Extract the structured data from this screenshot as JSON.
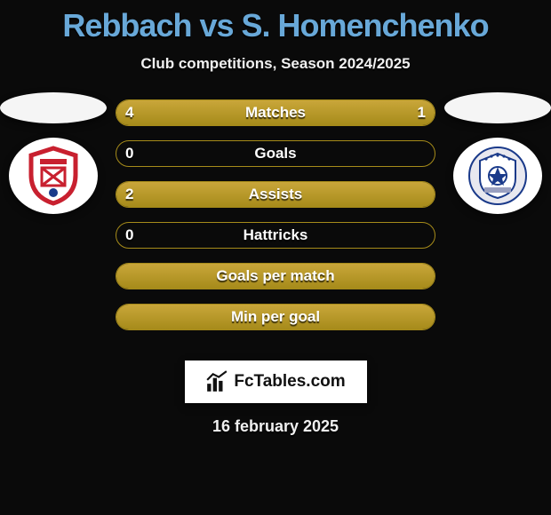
{
  "title": "Rebbach vs S. Homenchenko",
  "subtitle": "Club competitions, Season 2024/2025",
  "date": "16 february 2025",
  "branding": "FcTables.com",
  "colors": {
    "background": "#0a0a0a",
    "title": "#68a8d8",
    "text": "#f0f0f0",
    "bar_fill_top": "#c9a63a",
    "bar_fill_bottom": "#a68b1a",
    "bar_border": "#a68b1a",
    "banner_bg": "#ffffff"
  },
  "stats": [
    {
      "label": "Matches",
      "left_value": "4",
      "right_value": "1",
      "left_pct": 80,
      "right_pct": 20
    },
    {
      "label": "Goals",
      "left_value": "0",
      "right_value": "",
      "left_pct": 0,
      "right_pct": 0
    },
    {
      "label": "Assists",
      "left_value": "2",
      "right_value": "",
      "left_pct": 100,
      "right_pct": 0
    },
    {
      "label": "Hattricks",
      "left_value": "0",
      "right_value": "",
      "left_pct": 0,
      "right_pct": 0
    },
    {
      "label": "Goals per match",
      "left_value": "",
      "right_value": "",
      "left_pct": 100,
      "right_pct": 0
    },
    {
      "label": "Min per goal",
      "left_value": "",
      "right_value": "",
      "left_pct": 100,
      "right_pct": 0
    }
  ],
  "left_club": {
    "shape": "shield",
    "primary_color": "#c8202f",
    "secondary_color": "#ffffff",
    "accent_color": "#1a3a8a"
  },
  "right_club": {
    "shape": "shield",
    "primary_color": "#e8e8ef",
    "secondary_color": "#1a3a8a",
    "accent_color": "#9aa0c0"
  }
}
